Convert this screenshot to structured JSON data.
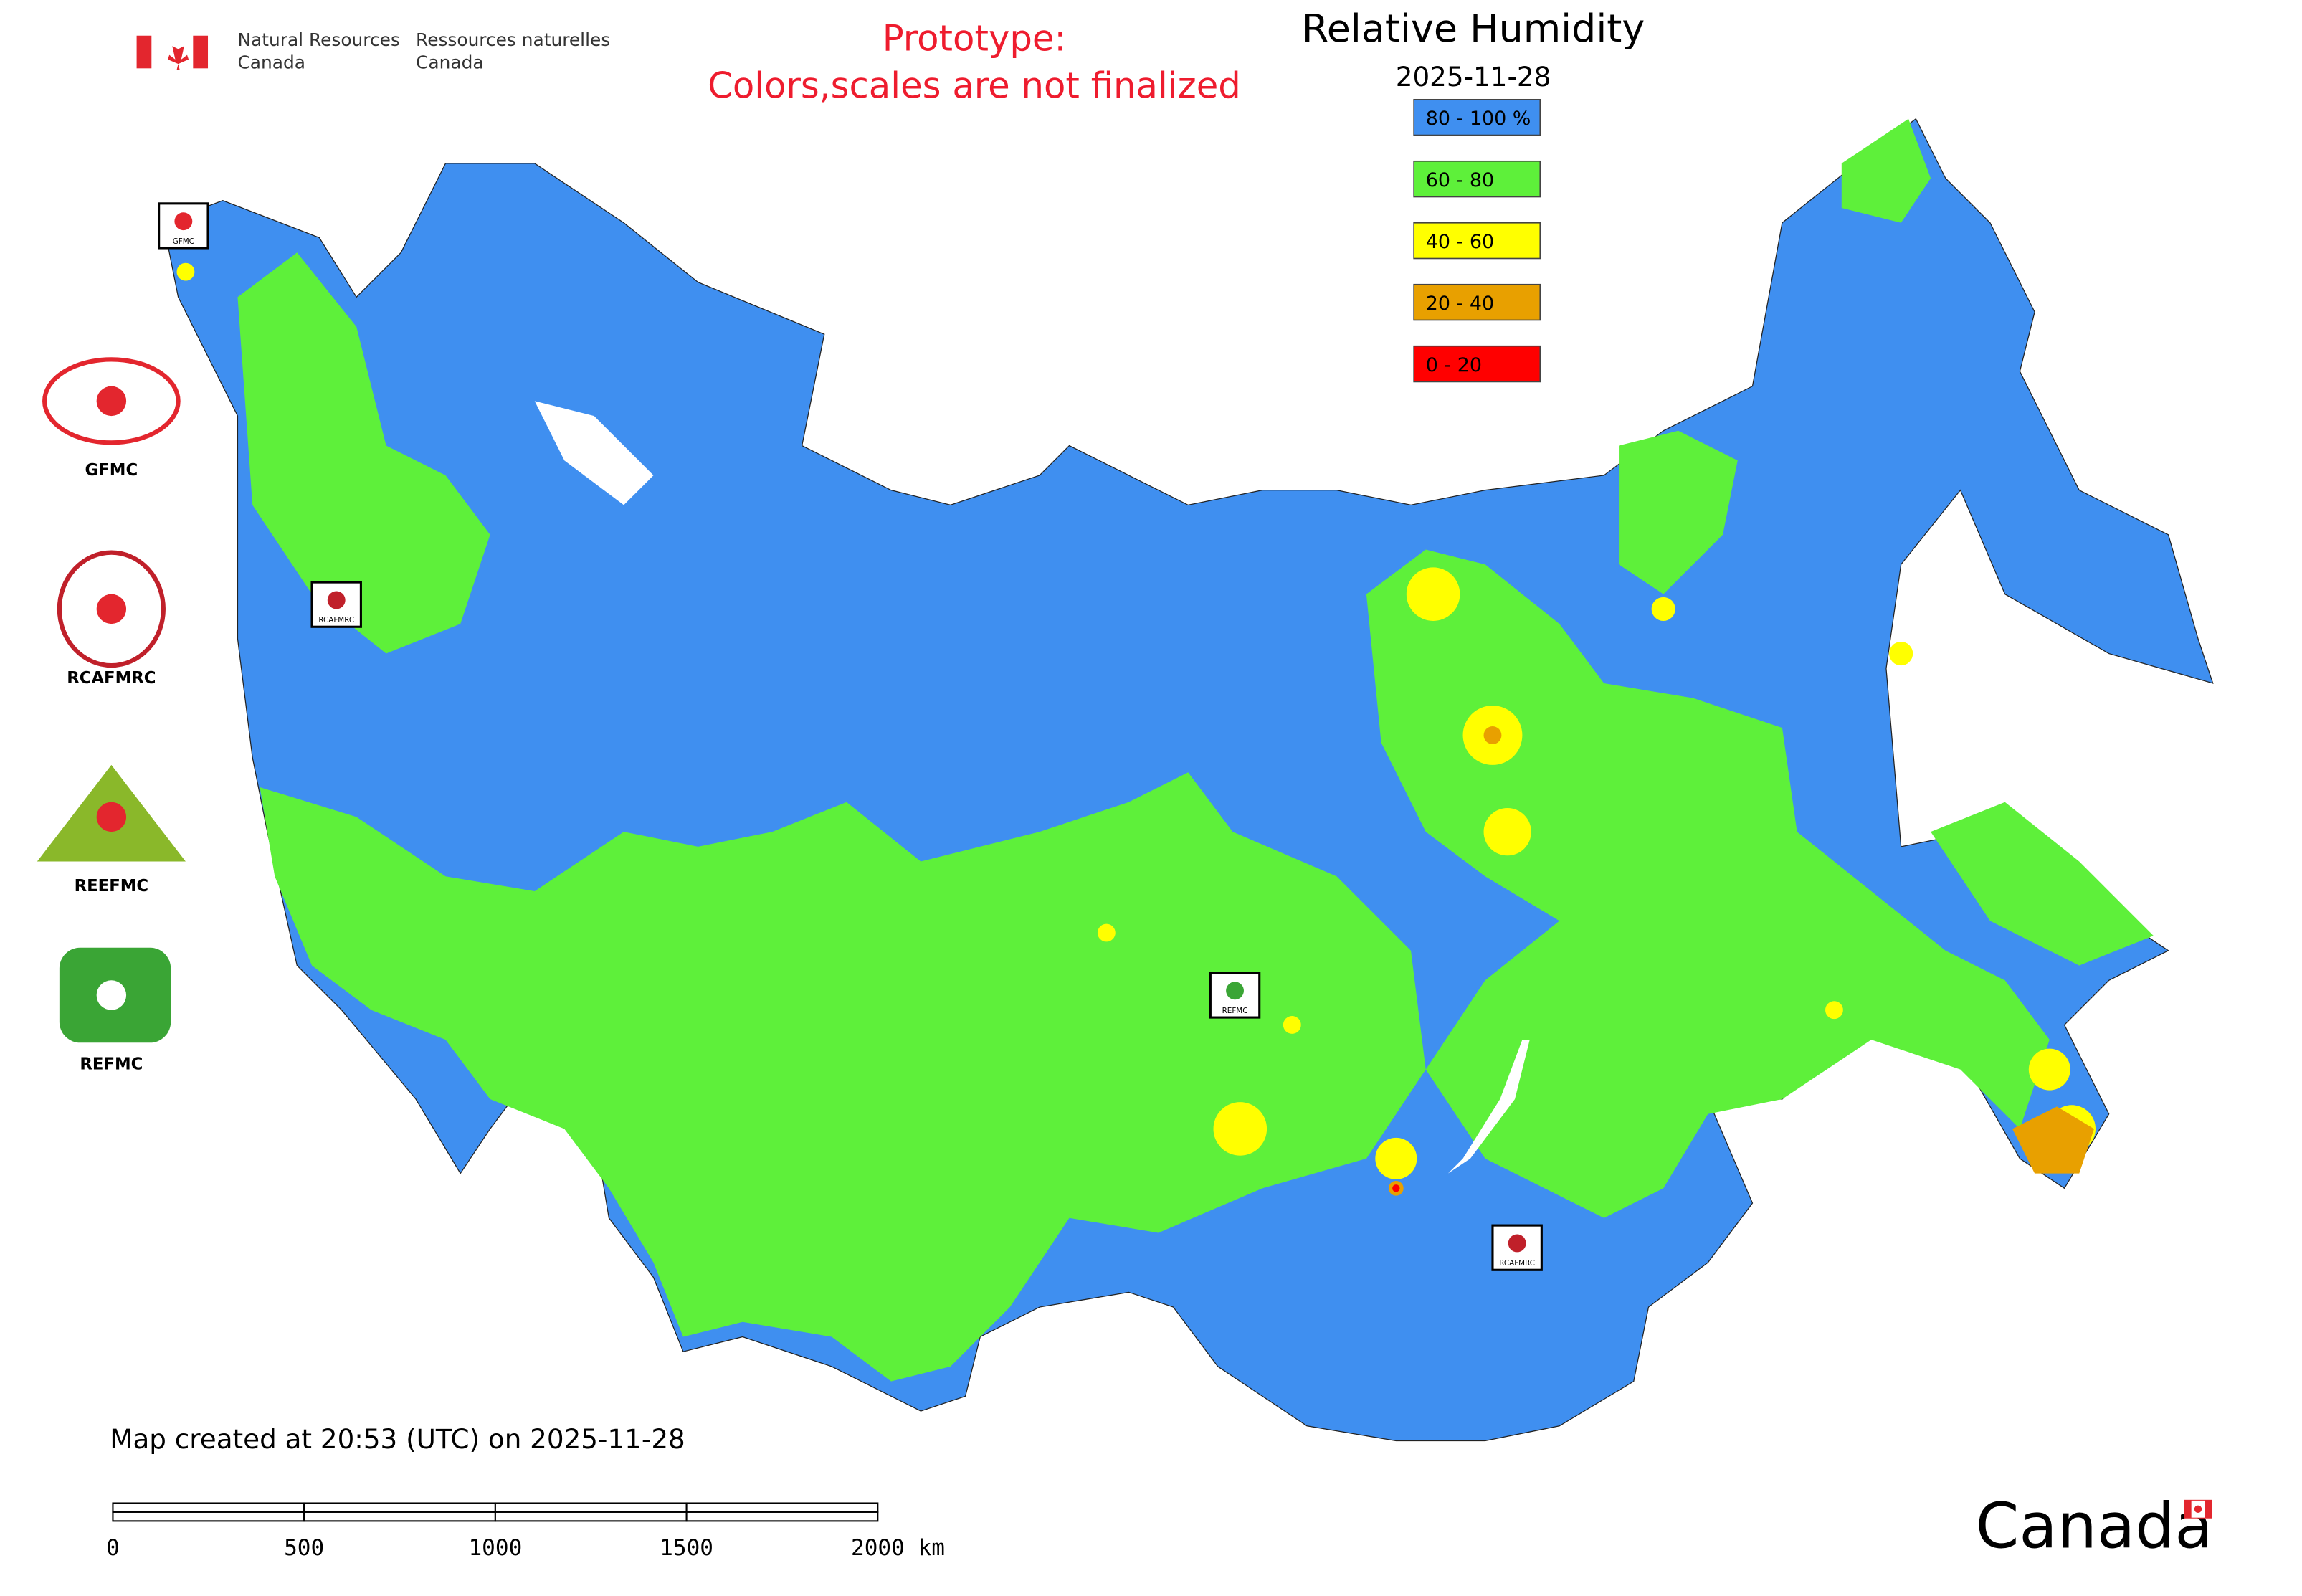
{
  "header": {
    "department_en": [
      "Natural Resources",
      "Canada"
    ],
    "department_fr": [
      "Ressources naturelles",
      "Canada"
    ],
    "notice": [
      "Prototype:",
      "Colors,scales are not finalized"
    ],
    "wordmark": "Canada"
  },
  "legend": {
    "title": "Relative Humidity",
    "date": "2025-11-28",
    "items": [
      {
        "label": "80 - 100 %",
        "color": "#3f8ff0"
      },
      {
        "label": "60 - 80",
        "color": "#5ef03a"
      },
      {
        "label": "40 - 60",
        "color": "#ffff00"
      },
      {
        "label": "20 - 40",
        "color": "#e8a000"
      },
      {
        "label": "0 - 20",
        "color": "#ff0000"
      }
    ]
  },
  "logos": [
    "GFMC",
    "RCAFMRC",
    "REEFMC",
    "REFMC"
  ],
  "footer": "Map created at 20:53 (UTC) on 2025-11-28",
  "scale_bar": {
    "labels": [
      "0",
      "500",
      "1000",
      "1500",
      "2000 km"
    ]
  }
}
